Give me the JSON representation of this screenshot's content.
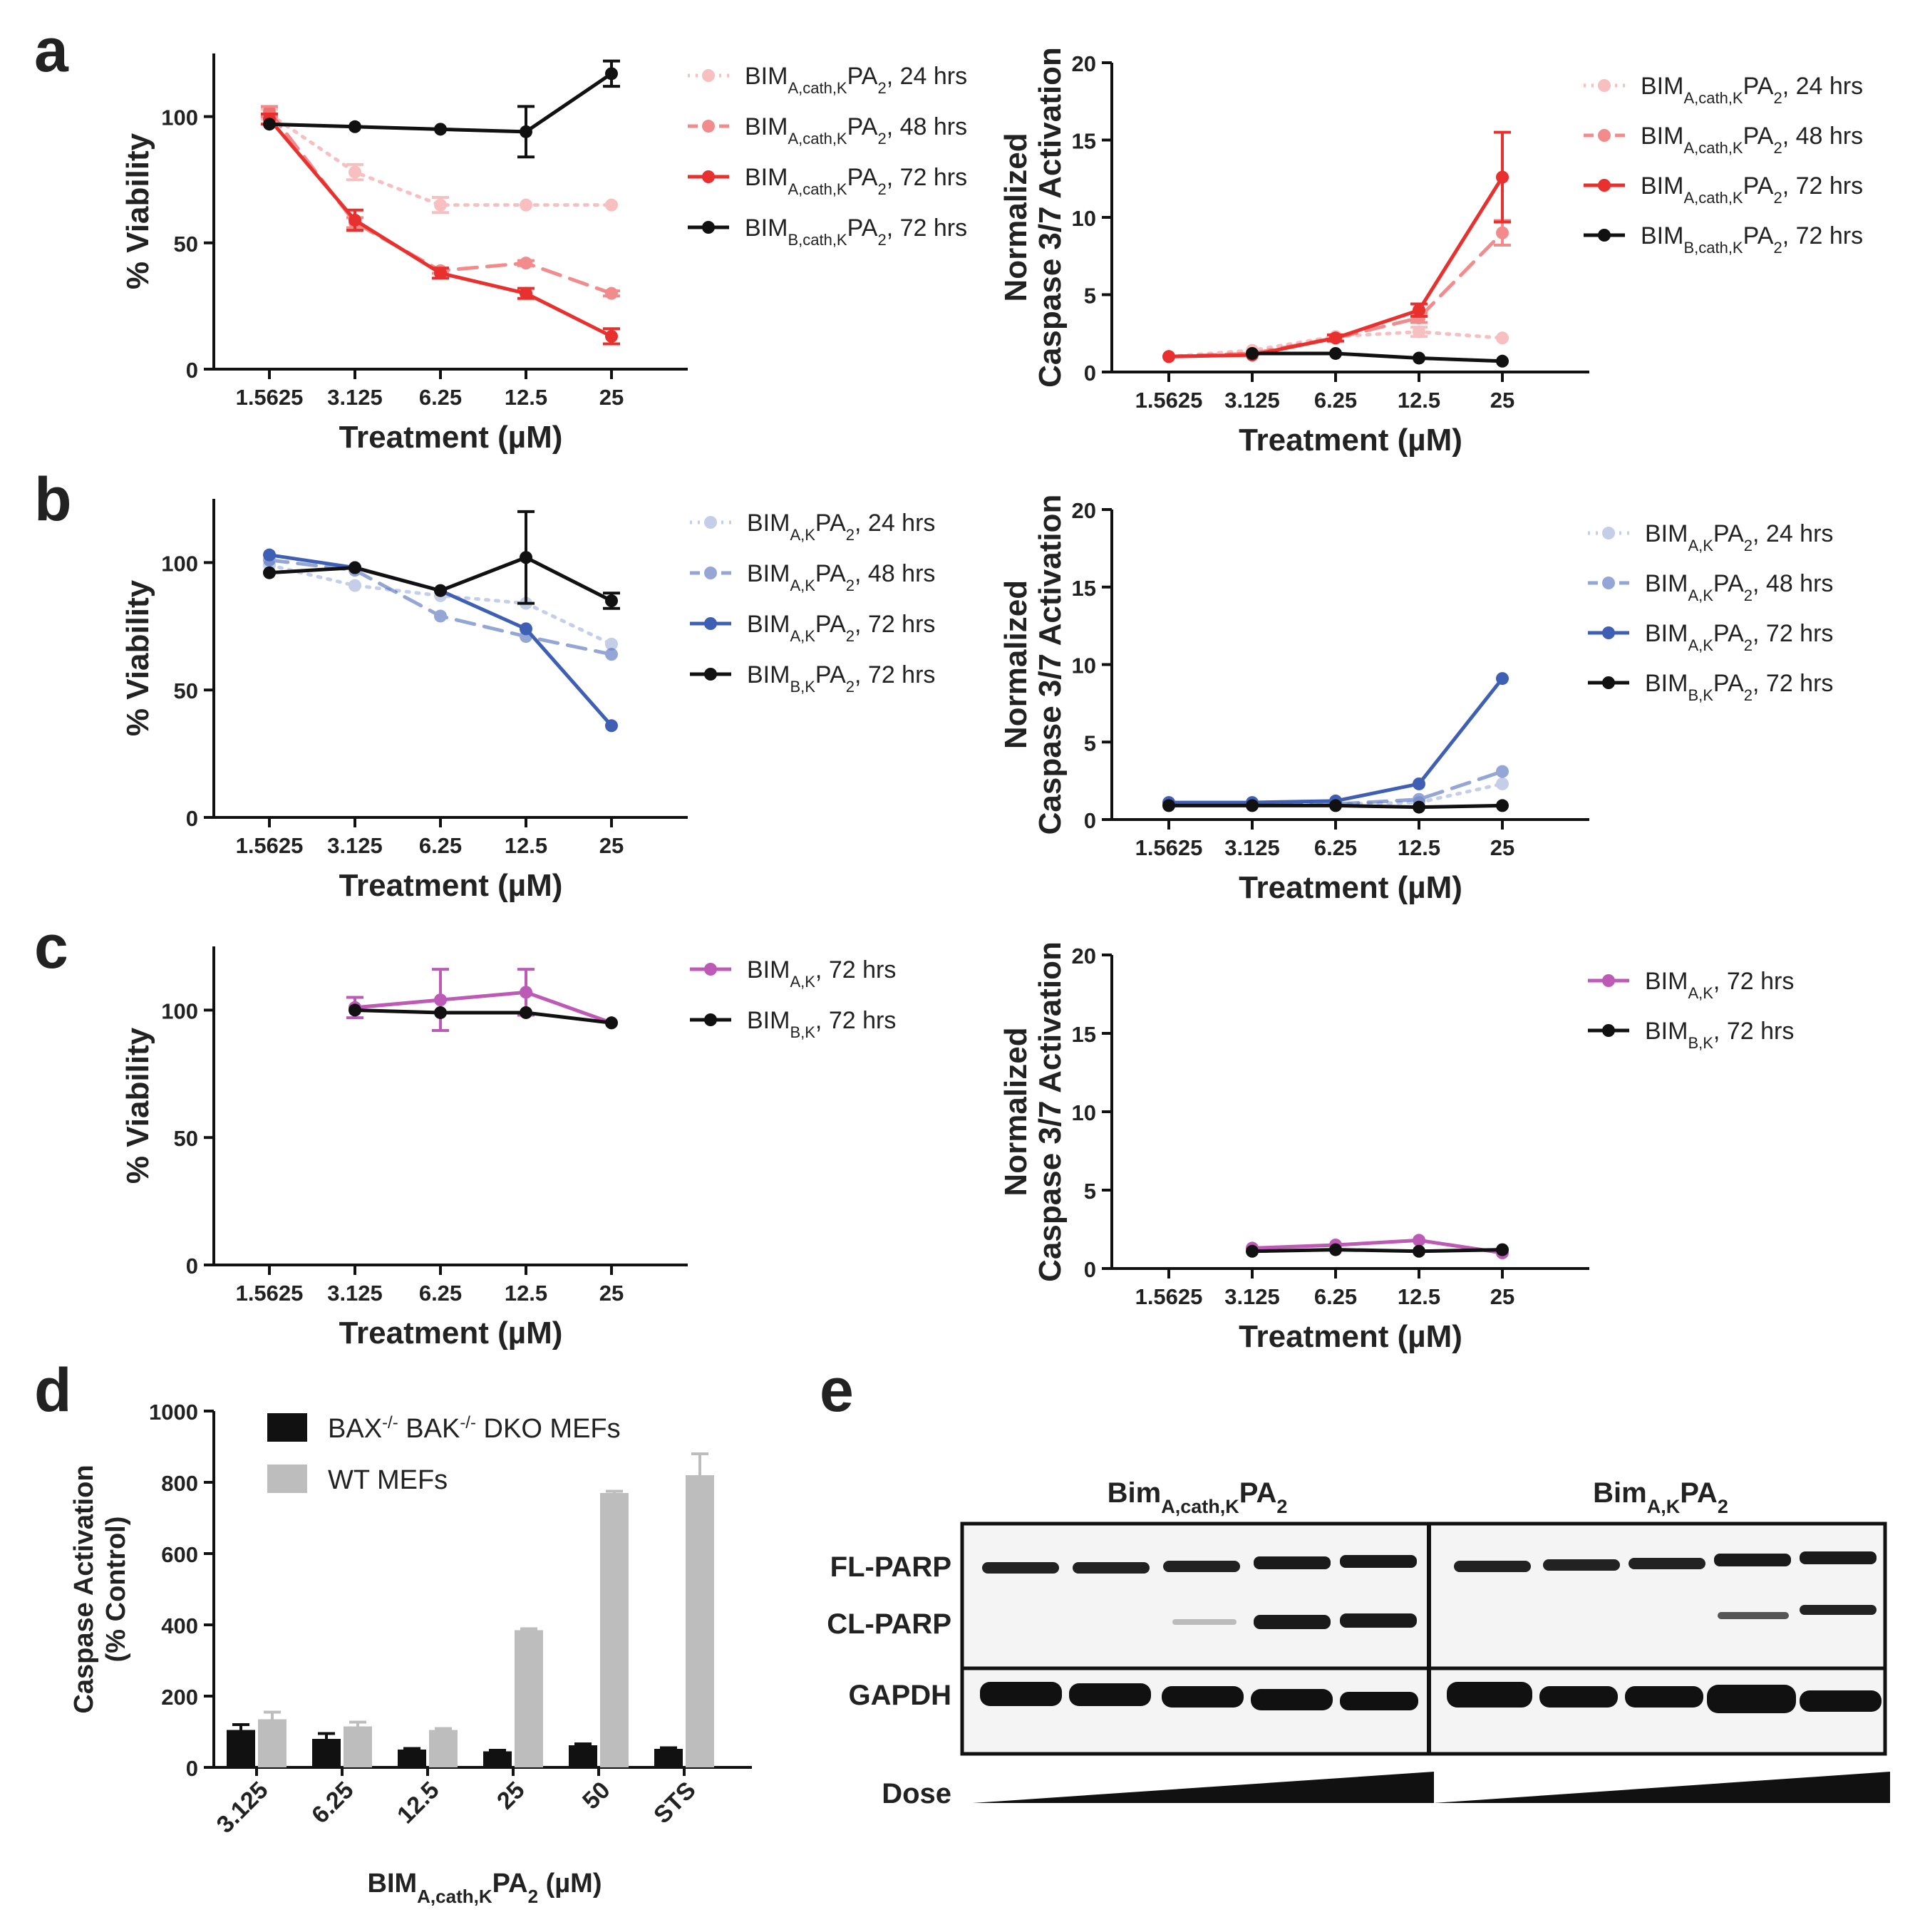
{
  "figure": {
    "panel_letters": [
      "a",
      "b",
      "c",
      "d",
      "e"
    ],
    "colors": {
      "red": "#e8302f",
      "blue": "#3e5fb4",
      "pink": "#bc5ab6",
      "black": "#111111",
      "gray": "#bdbdbd"
    }
  },
  "chart_data": [
    {
      "panel": "a",
      "type": "line",
      "xlabel": "Treatment (µM)",
      "ylabel": "% Viability",
      "categories": [
        "1.5625",
        "3.125",
        "6.25",
        "12.5",
        "25"
      ],
      "ylim": [
        0,
        125
      ],
      "yticks": [
        0,
        50,
        100
      ],
      "series": [
        {
          "name": "BIMA,cath,KPA2, 24 hrs",
          "sub1": "A,cath,K",
          "sub2": "2",
          "time": "24 hrs",
          "color": "#e8302f",
          "opacity": 0.3,
          "dash": "dot",
          "values": [
            101,
            78,
            65,
            65,
            65
          ],
          "err": [
            2,
            3,
            3,
            0,
            0
          ]
        },
        {
          "name": "BIMA,cath,KPA2, 48 hrs",
          "sub1": "A,cath,K",
          "sub2": "2",
          "time": "48 hrs",
          "color": "#e8302f",
          "opacity": 0.55,
          "dash": "dash",
          "values": [
            102,
            58,
            39,
            42,
            30
          ],
          "err": [
            2,
            2,
            1,
            1,
            1
          ]
        },
        {
          "name": "BIMA,cath,KPA2, 72 hrs",
          "sub1": "A,cath,K",
          "sub2": "2",
          "time": "72 hrs",
          "color": "#e8302f",
          "opacity": 1,
          "dash": "solid",
          "values": [
            99,
            59,
            38,
            30,
            13
          ],
          "err": [
            2,
            4,
            2,
            2,
            3
          ]
        },
        {
          "name": "BIMB,cath,KPA2, 72 hrs",
          "sub1": "B,cath,K",
          "sub2": "2",
          "time": "72 hrs",
          "color": "#111111",
          "opacity": 1,
          "dash": "solid",
          "values": [
            97,
            96,
            95,
            94,
            117
          ],
          "err": [
            0,
            0,
            0,
            10,
            5
          ]
        }
      ]
    },
    {
      "panel": "a2",
      "type": "line",
      "xlabel": "Treatment (µM)",
      "ylabel": "Normalized Caspase 3/7 Activation",
      "categories": [
        "1.5625",
        "3.125",
        "6.25",
        "12.5",
        "25"
      ],
      "ylim": [
        0,
        20
      ],
      "yticks": [
        0,
        5,
        10,
        15,
        20
      ],
      "series": [
        {
          "name": "BIMA,cath,KPA2, 24 hrs",
          "sub1": "A,cath,K",
          "sub2": "2",
          "time": "24 hrs",
          "color": "#e8302f",
          "opacity": 0.3,
          "dash": "dot",
          "values": [
            1.0,
            1.4,
            2.3,
            2.6,
            2.2
          ],
          "err": [
            0,
            0,
            0,
            0.3,
            0
          ]
        },
        {
          "name": "BIMA,cath,KPA2, 48 hrs",
          "sub1": "A,cath,K",
          "sub2": "2",
          "time": "48 hrs",
          "color": "#e8302f",
          "opacity": 0.55,
          "dash": "dash",
          "values": [
            1.0,
            1.2,
            2.2,
            3.5,
            9.0
          ],
          "err": [
            0,
            0,
            0,
            0.3,
            0.8
          ]
        },
        {
          "name": "BIMA,cath,KPA2, 72 hrs",
          "sub1": "A,cath,K",
          "sub2": "2",
          "time": "72 hrs",
          "color": "#e8302f",
          "opacity": 1,
          "dash": "solid",
          "values": [
            1.0,
            1.1,
            2.2,
            4.0,
            12.6
          ],
          "err": [
            0,
            0,
            0.2,
            0.4,
            2.9
          ]
        },
        {
          "name": "BIMB,cath,KPA2, 72 hrs",
          "sub1": "B,cath,K",
          "sub2": "2",
          "time": "72 hrs",
          "color": "#111111",
          "opacity": 1,
          "dash": "solid",
          "values": [
            null,
            1.2,
            1.2,
            0.9,
            0.7
          ],
          "err": [
            0,
            0,
            0,
            0,
            0
          ]
        }
      ]
    },
    {
      "panel": "b",
      "type": "line",
      "xlabel": "Treatment (µM)",
      "ylabel": "% Viability",
      "categories": [
        "1.5625",
        "3.125",
        "6.25",
        "12.5",
        "25"
      ],
      "ylim": [
        0,
        125
      ],
      "yticks": [
        0,
        50,
        100
      ],
      "series": [
        {
          "name": "BIMA,KPA2, 24 hrs",
          "sub1": "A,K",
          "sub2": "2",
          "time": "24 hrs",
          "color": "#3e5fb4",
          "opacity": 0.3,
          "dash": "dot",
          "values": [
            99,
            91,
            87,
            84,
            68
          ],
          "err": [
            0,
            0,
            0,
            0,
            0
          ]
        },
        {
          "name": "BIMA,KPA2, 48 hrs",
          "sub1": "A,K",
          "sub2": "2",
          "time": "48 hrs",
          "color": "#3e5fb4",
          "opacity": 0.55,
          "dash": "dash",
          "values": [
            101,
            97,
            79,
            71,
            64
          ],
          "err": [
            0,
            0,
            0,
            0,
            0
          ]
        },
        {
          "name": "BIMA,KPA2, 72 hrs",
          "sub1": "A,K",
          "sub2": "2",
          "time": "72 hrs",
          "color": "#3e5fb4",
          "opacity": 1,
          "dash": "solid",
          "values": [
            103,
            98,
            89,
            74,
            36
          ],
          "err": [
            0,
            0,
            0,
            0,
            0
          ]
        },
        {
          "name": "BIMB,KPA2, 72 hrs",
          "sub1": "B,K",
          "sub2": "2",
          "time": "72 hrs",
          "color": "#111111",
          "opacity": 1,
          "dash": "solid",
          "values": [
            96,
            98,
            89,
            102,
            85
          ],
          "err": [
            0,
            0,
            0,
            18,
            3
          ]
        }
      ]
    },
    {
      "panel": "b2",
      "type": "line",
      "xlabel": "Treatment (µM)",
      "ylabel": "Normalized Caspase 3/7 Activation",
      "categories": [
        "1.5625",
        "3.125",
        "6.25",
        "12.5",
        "25"
      ],
      "ylim": [
        0,
        20
      ],
      "yticks": [
        0,
        5,
        10,
        15,
        20
      ],
      "series": [
        {
          "name": "BIMA,KPA2, 24 hrs",
          "sub1": "A,K",
          "sub2": "2",
          "time": "24 hrs",
          "color": "#3e5fb4",
          "opacity": 0.3,
          "dash": "dot",
          "values": [
            1.0,
            1.0,
            1.0,
            1.1,
            2.3
          ],
          "err": [
            0,
            0,
            0,
            0,
            0
          ]
        },
        {
          "name": "BIMA,KPA2, 48 hrs",
          "sub1": "A,K",
          "sub2": "2",
          "time": "48 hrs",
          "color": "#3e5fb4",
          "opacity": 0.55,
          "dash": "dash",
          "values": [
            1.0,
            1.0,
            1.0,
            1.3,
            3.1
          ],
          "err": [
            0,
            0,
            0,
            0,
            0
          ]
        },
        {
          "name": "BIMA,KPA2, 72 hrs",
          "sub1": "A,K",
          "sub2": "2",
          "time": "72 hrs",
          "color": "#3e5fb4",
          "opacity": 1,
          "dash": "solid",
          "values": [
            1.1,
            1.1,
            1.2,
            2.3,
            9.1
          ],
          "err": [
            0,
            0,
            0,
            0,
            0
          ]
        },
        {
          "name": "BIMB,KPA2, 72 hrs",
          "sub1": "B,K",
          "sub2": "2",
          "time": "72 hrs",
          "color": "#111111",
          "opacity": 1,
          "dash": "solid",
          "values": [
            0.9,
            0.9,
            0.9,
            0.8,
            0.9
          ],
          "err": [
            0,
            0,
            0,
            0,
            0
          ]
        }
      ]
    },
    {
      "panel": "c",
      "type": "line",
      "xlabel": "Treatment (µM)",
      "ylabel": "% Viability",
      "categories": [
        "1.5625",
        "3.125",
        "6.25",
        "12.5",
        "25"
      ],
      "ylim": [
        0,
        125
      ],
      "yticks": [
        0,
        50,
        100
      ],
      "series": [
        {
          "name": "BIMA,K, 72 hrs",
          "sub1": "A,K",
          "sub2": "",
          "time": "72 hrs",
          "color": "#bc5ab6",
          "opacity": 1,
          "dash": "solid",
          "values": [
            null,
            101,
            104,
            107,
            95
          ],
          "err": [
            0,
            4,
            12,
            9,
            0
          ]
        },
        {
          "name": "BIMB,K, 72 hrs",
          "sub1": "B,K",
          "sub2": "",
          "time": "72 hrs",
          "color": "#111111",
          "opacity": 1,
          "dash": "solid",
          "values": [
            null,
            100,
            99,
            99,
            95
          ],
          "err": [
            0,
            0,
            0,
            0,
            0
          ]
        }
      ]
    },
    {
      "panel": "c2",
      "type": "line",
      "xlabel": "Treatment (µM)",
      "ylabel": "Normalized Caspase 3/7 Activation",
      "categories": [
        "1.5625",
        "3.125",
        "6.25",
        "12.5",
        "25"
      ],
      "ylim": [
        0,
        20
      ],
      "yticks": [
        0,
        5,
        10,
        15,
        20
      ],
      "series": [
        {
          "name": "BIMA,K, 72 hrs",
          "sub1": "A,K",
          "sub2": "",
          "time": "72 hrs",
          "color": "#bc5ab6",
          "opacity": 1,
          "dash": "solid",
          "values": [
            null,
            1.3,
            1.5,
            1.8,
            1.0
          ],
          "err": [
            0,
            0,
            0,
            0,
            0
          ]
        },
        {
          "name": "BIMB,K, 72 hrs",
          "sub1": "B,K",
          "sub2": "",
          "time": "72 hrs",
          "color": "#111111",
          "opacity": 1,
          "dash": "solid",
          "values": [
            null,
            1.1,
            1.2,
            1.1,
            1.2
          ],
          "err": [
            0,
            0,
            0,
            0,
            0
          ]
        }
      ]
    },
    {
      "panel": "d",
      "type": "bar",
      "ylabel_line1": "Caspase Activation",
      "ylabel_line2": "(% Control)",
      "xlabel_main": "BIM",
      "xlabel_sub": "A,cath,K",
      "xlabel_mid": "PA",
      "xlabel_sub2": "2",
      "xlabel_tail": " (µM)",
      "categories": [
        "3.125",
        "6.25",
        "12.5",
        "25",
        "50",
        "STS"
      ],
      "ylim": [
        0,
        1000
      ],
      "yticks": [
        0,
        200,
        400,
        600,
        800,
        1000
      ],
      "series": [
        {
          "name": "BAX-/- BAK-/- DKO MEFs",
          "label_a": "BAX",
          "sup_a": "-/-",
          "label_b": " BAK",
          "sup_b": "-/-",
          "label_c": " DKO MEFs",
          "color": "#111111",
          "values": [
            105,
            80,
            50,
            45,
            62,
            52
          ],
          "err": [
            15,
            15,
            3,
            3,
            4,
            3
          ]
        },
        {
          "name": "WT MEFs",
          "label_a": "WT MEFs",
          "sup_a": "",
          "label_b": "",
          "sup_b": "",
          "label_c": "",
          "color": "#bdbdbd",
          "values": [
            135,
            115,
            105,
            385,
            770,
            820
          ],
          "err": [
            20,
            12,
            4,
            4,
            5,
            60
          ]
        }
      ]
    }
  ],
  "blot": {
    "group1_main": "Bim",
    "group1_sub": "A,cath,K",
    "group1_mid": "PA",
    "group1_sub2": "2",
    "group2_main": "Bim",
    "group2_sub": "A,K",
    "group2_mid": "PA",
    "group2_sub2": "2",
    "row_labels": [
      "FL-PARP",
      "CL-PARP",
      "GAPDH"
    ],
    "dose_label": "Dose"
  }
}
